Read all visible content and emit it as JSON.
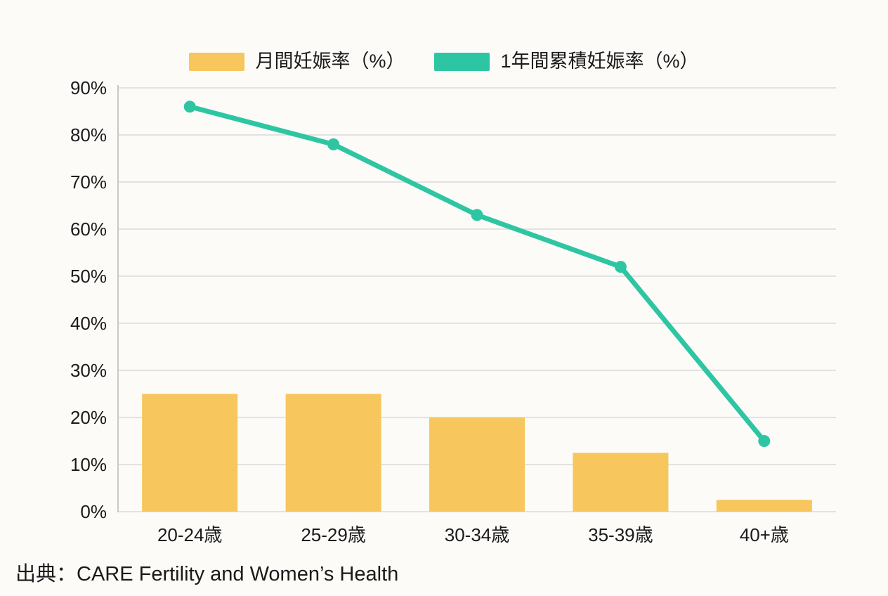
{
  "page": {
    "background": "#FCFBF8",
    "source_note": "出典：CARE Fertility and Women’s Health"
  },
  "legend": {
    "items": [
      {
        "label": "月間妊娠率（%）",
        "color": "#F7C65C"
      },
      {
        "label": "1年間累積妊娠率（%）",
        "color": "#2EC6A2"
      }
    ]
  },
  "chart_data": {
    "type": "combo-bar-line",
    "title": "",
    "categories": [
      "20-24歳",
      "25-29歳",
      "30-34歳",
      "35-39歳",
      "40+歳"
    ],
    "series": [
      {
        "name": "月間妊娠率（%）",
        "type": "bar",
        "color": "#F7C65C",
        "values": [
          25,
          25,
          20,
          12.5,
          2.5
        ]
      },
      {
        "name": "1年間累積妊娠率（%）",
        "type": "line",
        "color": "#2EC6A2",
        "values": [
          86,
          78,
          63,
          52,
          15
        ]
      }
    ],
    "y_axis": {
      "min": 0,
      "max": 90,
      "step": 10,
      "tick_labels": [
        "0%",
        "10%",
        "20%",
        "30%",
        "40%",
        "50%",
        "60%",
        "70%",
        "80%",
        "90%"
      ]
    },
    "xlabel": "",
    "ylabel": "",
    "grid": "horizontal",
    "legend_position": "top-center",
    "colors": {
      "grid_line": "#DADADA",
      "axis_line": "#C9C9C9",
      "text": "#1a1a1a"
    },
    "source": "出典：CARE Fertility and Women’s Health"
  }
}
